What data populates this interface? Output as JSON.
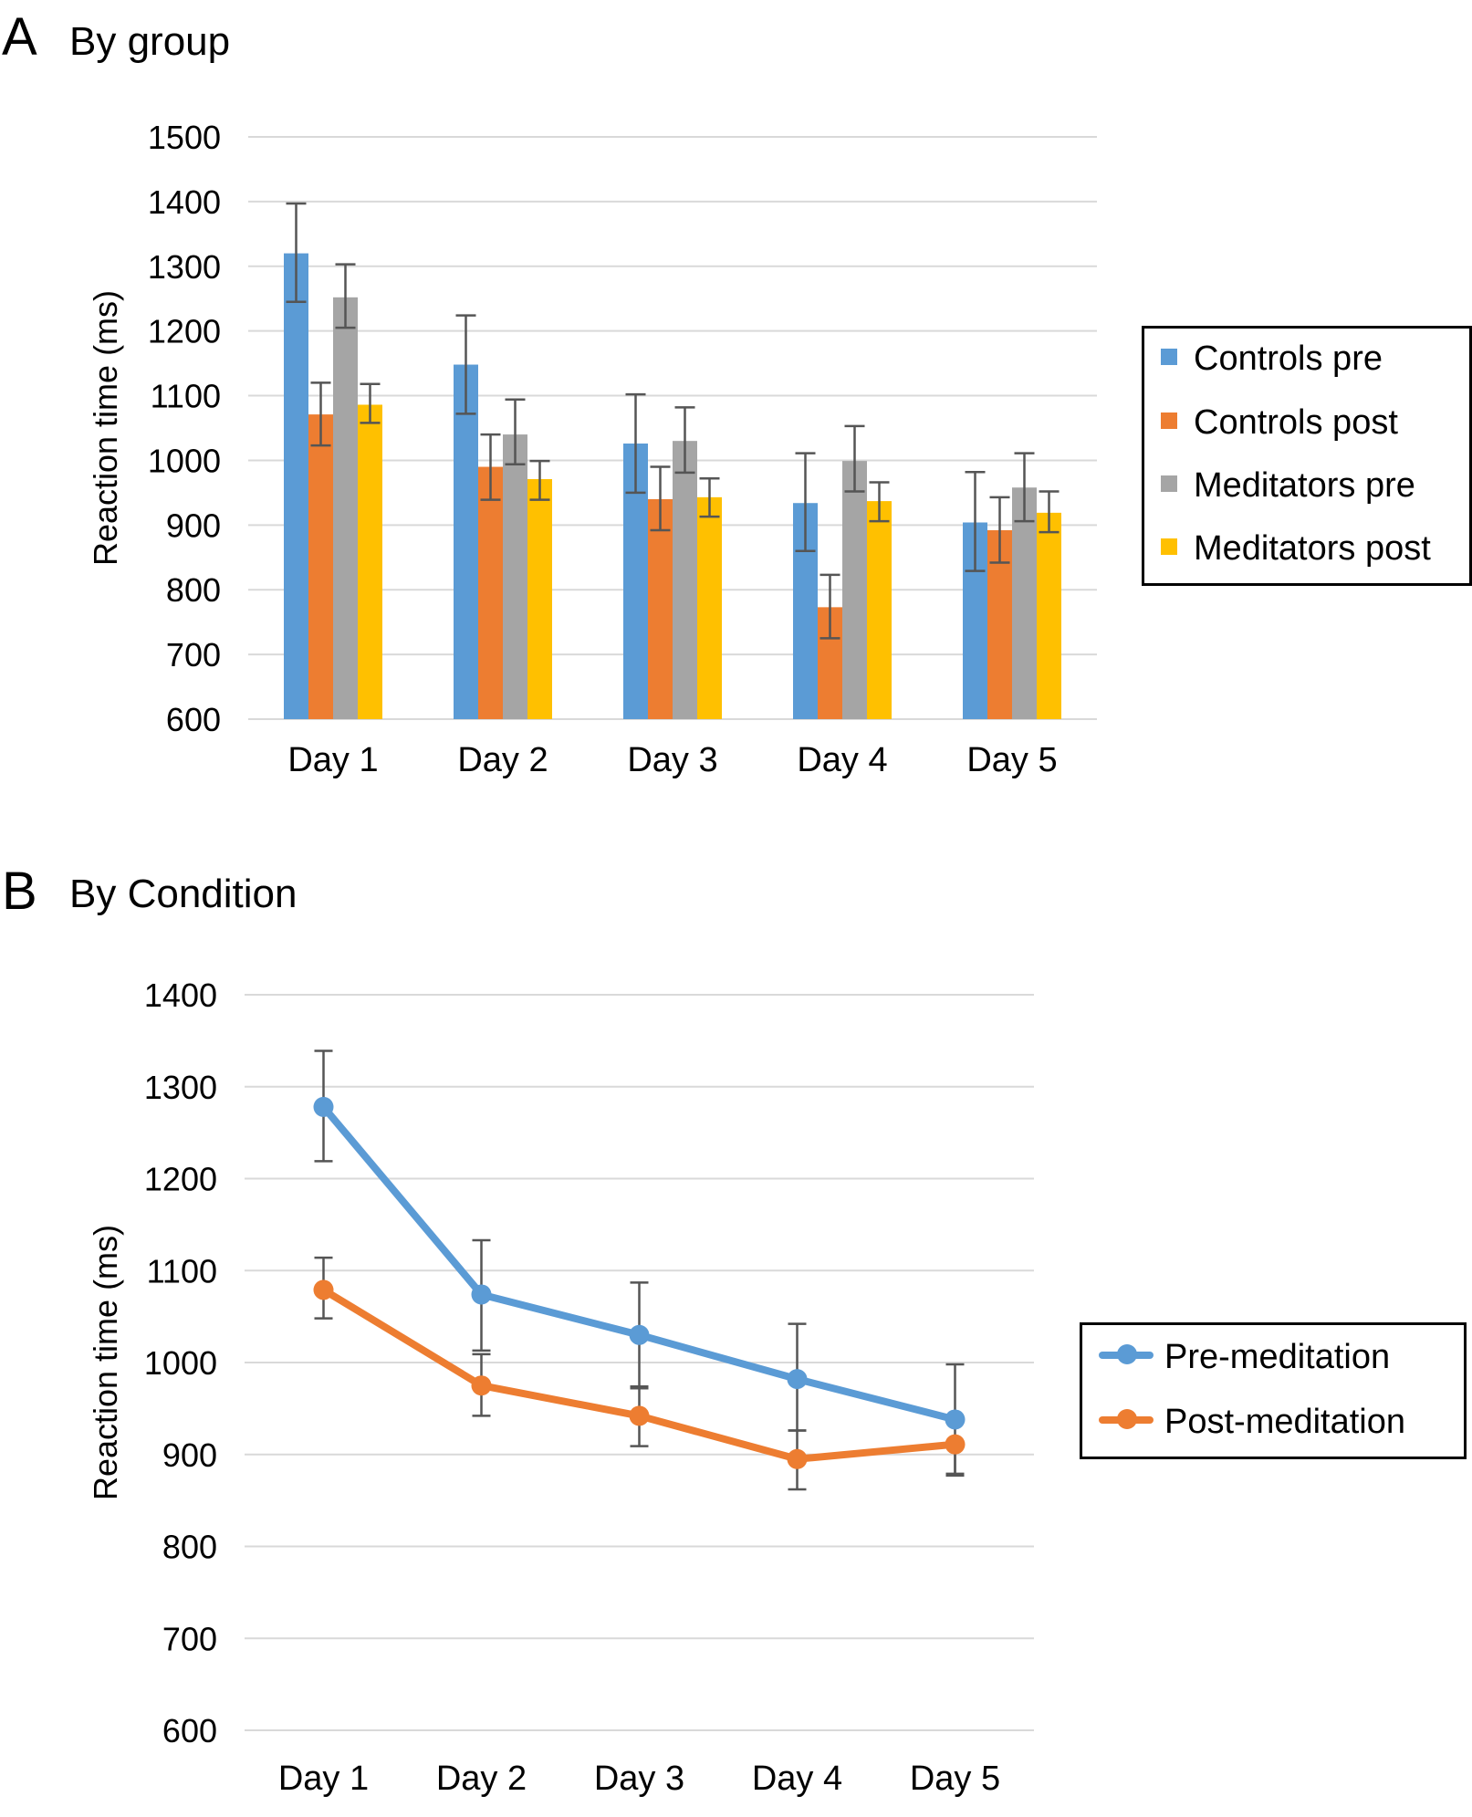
{
  "panels": {
    "a": {
      "letter": "A",
      "title": "By group"
    },
    "b": {
      "letter": "B",
      "title": "By Condition"
    }
  },
  "chart_data": [
    {
      "type": "bar",
      "title": "By group",
      "xlabel": "",
      "ylabel": "Reaction time (ms)",
      "ylim": [
        600,
        1500
      ],
      "yticks": [
        600,
        700,
        800,
        900,
        1000,
        1100,
        1200,
        1300,
        1400,
        1500
      ],
      "grid": true,
      "legend_position": "right",
      "categories": [
        "Day 1",
        "Day 2",
        "Day 3",
        "Day 4",
        "Day 5"
      ],
      "series": [
        {
          "name": "Controls pre",
          "color": "#5B9BD5",
          "values": [
            1320,
            1148,
            1026,
            934,
            904
          ],
          "err_high": [
            1397,
            1224,
            1102,
            1011,
            982
          ],
          "err_low": [
            1245,
            1072,
            950,
            860,
            829
          ]
        },
        {
          "name": "Controls post",
          "color": "#ED7D31",
          "values": [
            1071,
            990,
            940,
            773,
            892
          ],
          "err_high": [
            1120,
            1040,
            990,
            823,
            943
          ],
          "err_low": [
            1023,
            939,
            892,
            725,
            842
          ]
        },
        {
          "name": "Meditators pre",
          "color": "#A5A5A5",
          "values": [
            1252,
            1040,
            1030,
            999,
            958
          ],
          "err_high": [
            1303,
            1094,
            1082,
            1053,
            1011
          ],
          "err_low": [
            1205,
            994,
            981,
            952,
            906
          ]
        },
        {
          "name": "Meditators post",
          "color": "#FFC000",
          "values": [
            1086,
            971,
            943,
            937,
            919
          ],
          "err_high": [
            1118,
            999,
            972,
            966,
            952
          ],
          "err_low": [
            1058,
            939,
            913,
            906,
            889
          ]
        }
      ]
    },
    {
      "type": "line",
      "title": "By Condition",
      "xlabel": "",
      "ylabel": "Reaction time (ms)",
      "ylim": [
        600,
        1400
      ],
      "yticks": [
        600,
        700,
        800,
        900,
        1000,
        1100,
        1200,
        1300,
        1400
      ],
      "grid": true,
      "legend_position": "right",
      "categories": [
        "Day 1",
        "Day 2",
        "Day 3",
        "Day 4",
        "Day 5"
      ],
      "series": [
        {
          "name": "Pre-meditation",
          "color": "#5B9BD5",
          "values": [
            1278,
            1074,
            1030,
            982,
            938
          ],
          "err_high": [
            1339,
            1133,
            1087,
            1042,
            998
          ],
          "err_low": [
            1219,
            1013,
            972,
            926,
            879
          ]
        },
        {
          "name": "Post-meditation",
          "color": "#ED7D31",
          "values": [
            1079,
            975,
            942,
            895,
            911
          ],
          "err_high": [
            1114,
            1009,
            974,
            926,
            912
          ],
          "err_low": [
            1048,
            942,
            909,
            862,
            877
          ]
        }
      ]
    }
  ]
}
